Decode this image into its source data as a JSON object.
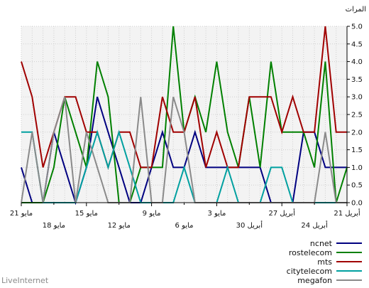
{
  "chart_data": {
    "type": "line",
    "title": "",
    "ylabel": "المرات",
    "xlabel": "",
    "ylim": [
      0,
      5
    ],
    "y_ticks": [
      "0.0",
      "0.5",
      "1.0",
      "1.5",
      "2.0",
      "2.5",
      "3.0",
      "3.5",
      "4.0",
      "4.5",
      "5.0"
    ],
    "x_axis_direction": "right-to-left",
    "x_ticks_row1": [
      {
        "index": 0,
        "label": "21 أبريل"
      },
      {
        "index": 6,
        "label": "27 أبريل"
      },
      {
        "index": 12,
        "label": "3 مايو"
      },
      {
        "index": 18,
        "label": "9 مايو"
      },
      {
        "index": 24,
        "label": "15 مايو"
      },
      {
        "index": 30,
        "label": "21 مايو"
      }
    ],
    "x_ticks_row2": [
      {
        "index": 3,
        "label": "24 أبريل"
      },
      {
        "index": 9,
        "label": "30 أبريل"
      },
      {
        "index": 15,
        "label": "6 مايو"
      },
      {
        "index": 21,
        "label": "12 مايو"
      },
      {
        "index": 27,
        "label": "18 مايو"
      }
    ],
    "num_points": 31,
    "grid": true,
    "legend_position": "bottom-right",
    "series": [
      {
        "name": "ncnet",
        "color": "#000080",
        "values": [
          1,
          1,
          1,
          2,
          2,
          0,
          0,
          0,
          1,
          1,
          1,
          1,
          1,
          1,
          2,
          1,
          1,
          2,
          1,
          0,
          0,
          1,
          2,
          3,
          1,
          0,
          1,
          2,
          0,
          0,
          1
        ]
      },
      {
        "name": "rostelecom",
        "color": "#008000",
        "values": [
          1,
          0,
          4,
          1,
          2,
          2,
          2,
          4,
          1,
          3,
          1,
          2,
          4,
          2,
          3,
          2,
          5,
          1,
          1,
          1,
          0,
          0,
          3,
          4,
          1,
          2,
          3,
          1,
          0,
          0,
          0
        ]
      },
      {
        "name": "mts",
        "color": "#a00000",
        "values": [
          2,
          2,
          5,
          2,
          2,
          3,
          2,
          3,
          3,
          3,
          1,
          1,
          2,
          1,
          3,
          2,
          2,
          3,
          1,
          1,
          2,
          2,
          1,
          2,
          2,
          3,
          3,
          2,
          1,
          3,
          4
        ]
      },
      {
        "name": "citytelecom",
        "color": "#00a0a0",
        "values": [
          0,
          0,
          0,
          0,
          0,
          0,
          1,
          1,
          0,
          0,
          0,
          1,
          0,
          0,
          0,
          1,
          0,
          0,
          0,
          0,
          1,
          2,
          1,
          2,
          1,
          0,
          0,
          0,
          0,
          2,
          2
        ]
      },
      {
        "name": "megafon",
        "color": "#8a8a8a",
        "values": [
          0,
          0,
          2,
          0,
          0,
          0,
          0,
          0,
          0,
          0,
          0,
          0,
          0,
          0,
          0,
          2,
          3,
          0,
          0,
          3,
          0,
          0,
          0,
          1,
          2,
          0,
          3,
          2,
          0,
          2,
          0
        ]
      }
    ]
  },
  "footer": {
    "brand": "LiveInternet"
  }
}
